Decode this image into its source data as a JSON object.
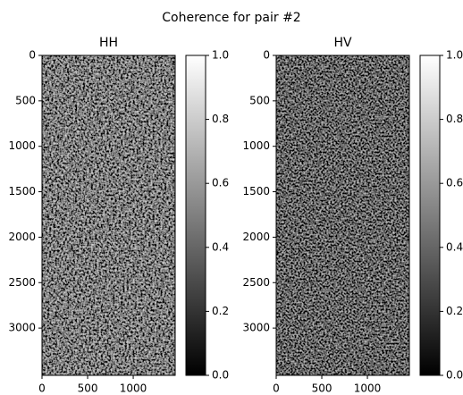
{
  "title": "Coherence for pair #2",
  "chart_data": [
    {
      "type": "image",
      "title": "HH",
      "colormap": "gray",
      "xlim": [
        0,
        1460
      ],
      "ylim": [
        3520,
        0
      ],
      "xticks": [
        0,
        500,
        1000
      ],
      "yticks": [
        0,
        500,
        1000,
        1500,
        2000,
        2500,
        3000
      ],
      "colorbar": {
        "clim": [
          0,
          1
        ],
        "ticks": [
          {
            "value": 0,
            "label": "0.0"
          },
          {
            "value": 0.2,
            "label": "0.2"
          },
          {
            "value": 0.4,
            "label": "0.4"
          },
          {
            "value": 0.6,
            "label": "0.6"
          },
          {
            "value": 0.8,
            "label": "0.8"
          },
          {
            "value": 1,
            "label": "1.0"
          }
        ]
      }
    },
    {
      "type": "image",
      "title": "HV",
      "colormap": "gray",
      "xlim": [
        0,
        1460
      ],
      "ylim": [
        3520,
        0
      ],
      "xticks": [
        0,
        500,
        1000
      ],
      "yticks": [
        0,
        500,
        1000,
        1500,
        2000,
        2500,
        3000
      ],
      "colorbar": {
        "clim": [
          0,
          1
        ],
        "ticks": [
          {
            "value": 0,
            "label": "0.0"
          },
          {
            "value": 0.2,
            "label": "0.2"
          },
          {
            "value": 0.4,
            "label": "0.4"
          },
          {
            "value": 0.6,
            "label": "0.6"
          },
          {
            "value": 0.8,
            "label": "0.8"
          },
          {
            "value": 1,
            "label": "1.0"
          }
        ]
      }
    }
  ]
}
